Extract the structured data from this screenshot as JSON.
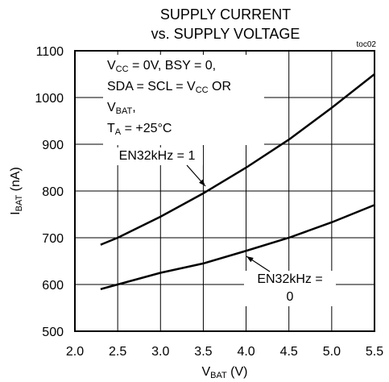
{
  "chart_data": {
    "type": "line",
    "title_lines": [
      "SUPPLY CURRENT",
      "vs. SUPPLY VOLTAGE"
    ],
    "figure_id": "toc02",
    "xlabel": [
      {
        "t": "V",
        "sub": false
      },
      {
        "t": "BAT",
        "sub": true
      },
      {
        "t": " (V)",
        "sub": false
      }
    ],
    "ylabel": [
      {
        "t": "I",
        "sub": false
      },
      {
        "t": "BAT",
        "sub": true
      },
      {
        "t": " (nA)",
        "sub": false
      }
    ],
    "conditions": [
      [
        {
          "t": "V",
          "sub": false
        },
        {
          "t": "CC",
          "sub": true
        },
        {
          "t": " = 0V, BSY = 0,",
          "sub": false
        }
      ],
      [
        {
          "t": "SDA = SCL = V",
          "sub": false
        },
        {
          "t": "CC",
          "sub": true
        },
        {
          "t": " OR",
          "sub": false
        }
      ],
      [
        {
          "t": "V",
          "sub": false
        },
        {
          "t": "BAT",
          "sub": true
        },
        {
          "t": ",",
          "sub": false
        }
      ],
      [
        {
          "t": "T",
          "sub": false
        },
        {
          "t": "A",
          "sub": true
        },
        {
          "t": " = +25°C",
          "sub": false
        }
      ]
    ],
    "x": [
      2.3,
      2.5,
      3.0,
      3.5,
      4.0,
      4.5,
      5.0,
      5.5
    ],
    "series": [
      {
        "name": [
          "EN32kHz = 1"
        ],
        "color": "#000000",
        "values": [
          685,
          700,
          745,
          795,
          850,
          910,
          978,
          1050
        ]
      },
      {
        "name": [
          "EN32kHz =",
          "0"
        ],
        "color": "#000000",
        "values": [
          590,
          600,
          625,
          645,
          672,
          700,
          733,
          770
        ]
      }
    ],
    "xlim": [
      2.0,
      5.5
    ],
    "xticks": [
      {
        "value": 2.0,
        "label": "2.0"
      },
      2.5,
      {
        "value": 3.0,
        "label": "3.0"
      },
      3.5,
      {
        "value": 4.0,
        "label": "4.0"
      },
      4.5,
      {
        "value": 5.0,
        "label": "5.0"
      },
      5.5
    ],
    "ylim": [
      500,
      1100
    ],
    "yticks": [
      500,
      600,
      700,
      800,
      900,
      1000,
      1100
    ],
    "grid": true
  }
}
